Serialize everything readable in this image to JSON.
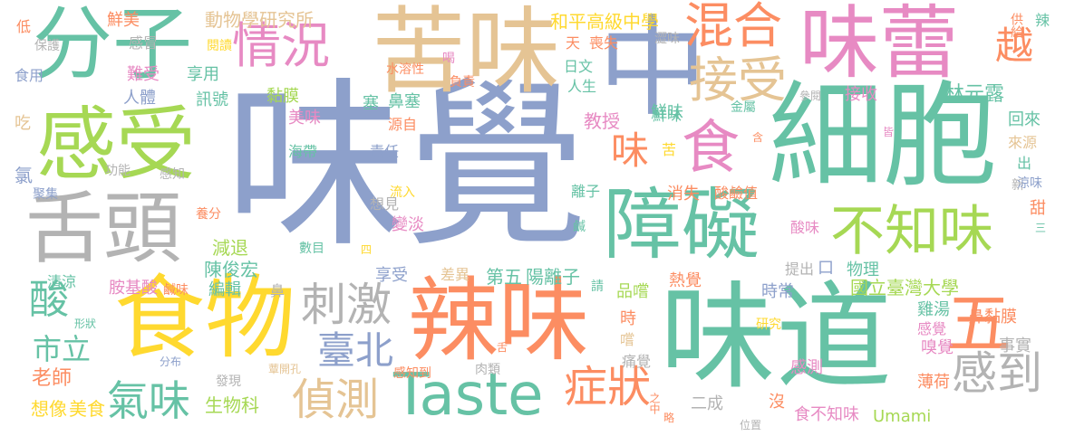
{
  "palette": {
    "blue": "#8da0cb",
    "teal": "#66c2a5",
    "orange": "#fc8d62",
    "pink": "#e78ac3",
    "green": "#a6d854",
    "yellow": "#ffd92f",
    "tan": "#e5c494",
    "gray": "#b3b3b3"
  },
  "words": [
    {
      "text": "味覺",
      "color": "blue"
    },
    {
      "text": "細胞",
      "color": "teal"
    },
    {
      "text": "味道",
      "color": "teal"
    },
    {
      "text": "中",
      "color": "blue"
    },
    {
      "text": "苦味",
      "color": "tan"
    },
    {
      "text": "分子",
      "color": "teal"
    },
    {
      "text": "味蕾",
      "color": "pink"
    },
    {
      "text": "辣味",
      "color": "orange"
    },
    {
      "text": "食物",
      "color": "yellow"
    },
    {
      "text": "感受",
      "color": "green"
    },
    {
      "text": "舌頭",
      "color": "gray"
    },
    {
      "text": "障礙",
      "color": "teal"
    },
    {
      "text": "Taste",
      "color": "teal"
    },
    {
      "text": "不知味",
      "color": "green"
    },
    {
      "text": "食",
      "color": "pink"
    },
    {
      "text": "情況",
      "color": "pink"
    },
    {
      "text": "混合",
      "color": "orange"
    },
    {
      "text": "接受",
      "color": "tan"
    },
    {
      "text": "五",
      "color": "orange"
    },
    {
      "text": "刺激",
      "color": "gray"
    },
    {
      "text": "感到",
      "color": "gray"
    },
    {
      "text": "症狀",
      "color": "orange"
    },
    {
      "text": "偵測",
      "color": "tan"
    },
    {
      "text": "氣味",
      "color": "teal"
    },
    {
      "text": "臺北",
      "color": "blue"
    },
    {
      "text": "酸",
      "color": "teal"
    },
    {
      "text": "市立",
      "color": "teal"
    },
    {
      "text": "味",
      "color": "orange"
    },
    {
      "text": "越",
      "color": "orange"
    },
    {
      "text": "國立臺灣大學",
      "color": "green"
    },
    {
      "text": "第五",
      "color": "teal"
    },
    {
      "text": "陽離子",
      "color": "teal"
    },
    {
      "text": "和平高級中學",
      "color": "yellow"
    },
    {
      "text": "動物學研究所",
      "color": "tan"
    },
    {
      "text": "Umami",
      "color": "green"
    },
    {
      "text": "林元露",
      "color": "teal"
    },
    {
      "text": "陳俊宏",
      "color": "teal"
    },
    {
      "text": "老師",
      "color": "orange"
    },
    {
      "text": "教授",
      "color": "pink"
    },
    {
      "text": "鮮味",
      "color": "teal"
    },
    {
      "text": "想像",
      "color": "yellow"
    },
    {
      "text": "美食",
      "color": "yellow"
    },
    {
      "text": "生物科",
      "color": "green"
    },
    {
      "text": "減退",
      "color": "green"
    },
    {
      "text": "編輯",
      "color": "teal"
    },
    {
      "text": "享受",
      "color": "blue"
    },
    {
      "text": "差異",
      "color": "tan"
    },
    {
      "text": "品嚐",
      "color": "green"
    },
    {
      "text": "時",
      "color": "orange"
    },
    {
      "text": "嚐",
      "color": "tan"
    },
    {
      "text": "痛覺",
      "color": "gray"
    },
    {
      "text": "熱覺",
      "color": "orange"
    },
    {
      "text": "感測",
      "color": "pink"
    },
    {
      "text": "二成",
      "color": "gray"
    },
    {
      "text": "沒",
      "color": "orange"
    },
    {
      "text": "食不知味",
      "color": "pink"
    },
    {
      "text": "位置",
      "color": "gray"
    },
    {
      "text": "薄荷",
      "color": "orange"
    },
    {
      "text": "事實",
      "color": "gray"
    },
    {
      "text": "嗅覺",
      "color": "pink"
    },
    {
      "text": "感覺",
      "color": "pink"
    },
    {
      "text": "雞湯",
      "color": "teal"
    },
    {
      "text": "鼻黏膜",
      "color": "orange"
    },
    {
      "text": "提出",
      "color": "gray"
    },
    {
      "text": "口",
      "color": "blue"
    },
    {
      "text": "物理",
      "color": "teal"
    },
    {
      "text": "時常",
      "color": "blue"
    },
    {
      "text": "酸味",
      "color": "pink"
    },
    {
      "text": "回來",
      "color": "teal"
    },
    {
      "text": "來源",
      "color": "tan"
    },
    {
      "text": "出",
      "color": "teal"
    },
    {
      "text": "新",
      "color": "gray"
    },
    {
      "text": "涼味",
      "color": "blue"
    },
    {
      "text": "甜",
      "color": "orange"
    },
    {
      "text": "三",
      "color": "teal"
    },
    {
      "text": "金屬",
      "color": "teal"
    },
    {
      "text": "含",
      "color": "orange"
    },
    {
      "text": "皆",
      "color": "pink"
    },
    {
      "text": "參閱",
      "color": "gray"
    },
    {
      "text": "接收",
      "color": "pink"
    },
    {
      "text": "辣",
      "color": "teal"
    },
    {
      "text": "供給",
      "color": "orange"
    },
    {
      "text": "鮮美",
      "color": "orange"
    },
    {
      "text": "感冒",
      "color": "gray"
    },
    {
      "text": "保護",
      "color": "gray"
    },
    {
      "text": "低",
      "color": "orange"
    },
    {
      "text": "閱讀",
      "color": "yellow"
    },
    {
      "text": "食用",
      "color": "blue"
    },
    {
      "text": "難受",
      "color": "pink"
    },
    {
      "text": "享用",
      "color": "teal"
    },
    {
      "text": "人體",
      "color": "blue"
    },
    {
      "text": "訊號",
      "color": "teal"
    },
    {
      "text": "黏膜",
      "color": "green"
    },
    {
      "text": "美味",
      "color": "pink"
    },
    {
      "text": "吃",
      "color": "tan"
    },
    {
      "text": "氯",
      "color": "blue"
    },
    {
      "text": "功能",
      "color": "gray"
    },
    {
      "text": "感知",
      "color": "gray"
    },
    {
      "text": "聚集",
      "color": "blue"
    },
    {
      "text": "養分",
      "color": "orange"
    },
    {
      "text": "清涼",
      "color": "teal"
    },
    {
      "text": "胺基酸",
      "color": "pink"
    },
    {
      "text": "鹹味",
      "color": "orange"
    },
    {
      "text": "形狀",
      "color": "teal"
    },
    {
      "text": "分布",
      "color": "blue"
    },
    {
      "text": "發現",
      "color": "gray"
    },
    {
      "text": "蕈開孔",
      "color": "tan"
    },
    {
      "text": "感知到",
      "color": "orange"
    },
    {
      "text": "肉類",
      "color": "gray"
    },
    {
      "text": "舌",
      "color": "orange"
    },
    {
      "text": "之中",
      "color": "orange"
    },
    {
      "text": "略",
      "color": "orange"
    },
    {
      "text": "研究",
      "color": "yellow"
    },
    {
      "text": "水溶性",
      "color": "orange"
    },
    {
      "text": "喝",
      "color": "pink"
    },
    {
      "text": "負責",
      "color": "orange"
    },
    {
      "text": "塞",
      "color": "teal"
    },
    {
      "text": "鼻塞",
      "color": "teal"
    },
    {
      "text": "源自",
      "color": "orange"
    },
    {
      "text": "責任",
      "color": "blue"
    },
    {
      "text": "海帶",
      "color": "teal"
    },
    {
      "text": "想見",
      "color": "gray"
    },
    {
      "text": "變淡",
      "color": "pink"
    },
    {
      "text": "數目",
      "color": "teal"
    },
    {
      "text": "四",
      "color": "yellow"
    },
    {
      "text": "鼻",
      "color": "gray"
    },
    {
      "text": "請",
      "color": "teal"
    },
    {
      "text": "流入",
      "color": "yellow"
    },
    {
      "text": "鹹",
      "color": "teal"
    },
    {
      "text": "離子",
      "color": "teal"
    },
    {
      "text": "消失",
      "color": "orange"
    },
    {
      "text": "酸鹼值",
      "color": "orange"
    },
    {
      "text": "苦",
      "color": "yellow"
    },
    {
      "text": "鮮味",
      "color": "teal"
    },
    {
      "text": "人生",
      "color": "teal"
    },
    {
      "text": "日文",
      "color": "teal"
    },
    {
      "text": "天",
      "color": "orange"
    },
    {
      "text": "喪失",
      "color": "orange"
    },
    {
      "text": "澀味",
      "color": "gray"
    }
  ]
}
